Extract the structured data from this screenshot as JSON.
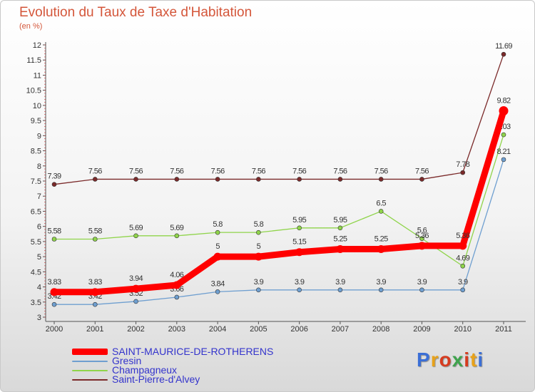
{
  "title": "Evolution du Taux de Taxe d'Habitation",
  "unit": "(en %)",
  "brand": {
    "text": "Proxiti",
    "colors": [
      "#3b6fd6",
      "#e8a21a",
      "#d63b1f",
      "#3fa34d",
      "#d63b1f",
      "#e8a21a",
      "#3b6fd6"
    ]
  },
  "chart_data": {
    "type": "line",
    "title": "Evolution du Taux de Taxe d'Habitation",
    "ylabel": "(en %)",
    "xlabel": "",
    "x": [
      "2000",
      "2001",
      "2002",
      "2003",
      "2004",
      "2005",
      "2006",
      "2007",
      "2008",
      "2009",
      "2010",
      "2011"
    ],
    "ylim": [
      3,
      12
    ],
    "yticks": [
      "3",
      "3.5",
      "4",
      "4.5",
      "5",
      "5.5",
      "6",
      "6.5",
      "7",
      "7.5",
      "8",
      "8.5",
      "9",
      "9.5",
      "10",
      "10.5",
      "11",
      "11.5",
      "12"
    ],
    "grid": false,
    "legend_position": "bottom-left",
    "series": [
      {
        "name": "Saint-Pierre-d'Alvey",
        "color": "#7b2a2a",
        "values": [
          7.39,
          7.56,
          7.56,
          7.56,
          7.56,
          7.56,
          7.56,
          7.56,
          7.56,
          7.56,
          7.78,
          11.69
        ],
        "labels": [
          "7.39",
          "7.56",
          "7.56",
          "7.56",
          "7.56",
          "7.56",
          "7.56",
          "7.56",
          "7.56",
          "7.56",
          "7.78",
          "11.69"
        ]
      },
      {
        "name": "Champagneux",
        "color": "#8fd44a",
        "values": [
          5.58,
          5.58,
          5.69,
          5.69,
          5.8,
          5.8,
          5.95,
          5.95,
          6.5,
          5.6,
          4.69,
          9.03
        ],
        "labels": [
          "5.58",
          "5.58",
          "5.69",
          "5.69",
          "5.8",
          "5.8",
          "5.95",
          "5.95",
          "6.5",
          "5.6",
          "4.69",
          "9.03"
        ]
      },
      {
        "name": "Gresin",
        "color": "#6f9fd0",
        "values": [
          3.42,
          3.42,
          3.52,
          3.66,
          3.84,
          3.9,
          3.9,
          3.9,
          3.9,
          3.9,
          3.9,
          8.21
        ],
        "labels": [
          "3.42",
          "3.42",
          "3.52",
          "3.66",
          "3.84",
          "3.9",
          "3.9",
          "3.9",
          "3.9",
          "3.9",
          "3.9",
          "8.21"
        ]
      },
      {
        "name": "SAINT-MAURICE-DE-ROTHERENS",
        "color": "#ff0000",
        "values": [
          3.83,
          3.83,
          3.94,
          4.06,
          5,
          5,
          5.15,
          5.25,
          5.25,
          5.36,
          5.36,
          9.82
        ],
        "labels": [
          "3.83",
          "3.83",
          "3.94",
          "4.06",
          "5",
          "5",
          "5.15",
          "5.25",
          "5.25",
          "5.36",
          "5.36",
          "9.82"
        ]
      }
    ],
    "legend": [
      "SAINT-MAURICE-DE-ROTHERENS",
      "Gresin",
      "Champagneux",
      "Saint-Pierre-d'Alvey"
    ]
  }
}
